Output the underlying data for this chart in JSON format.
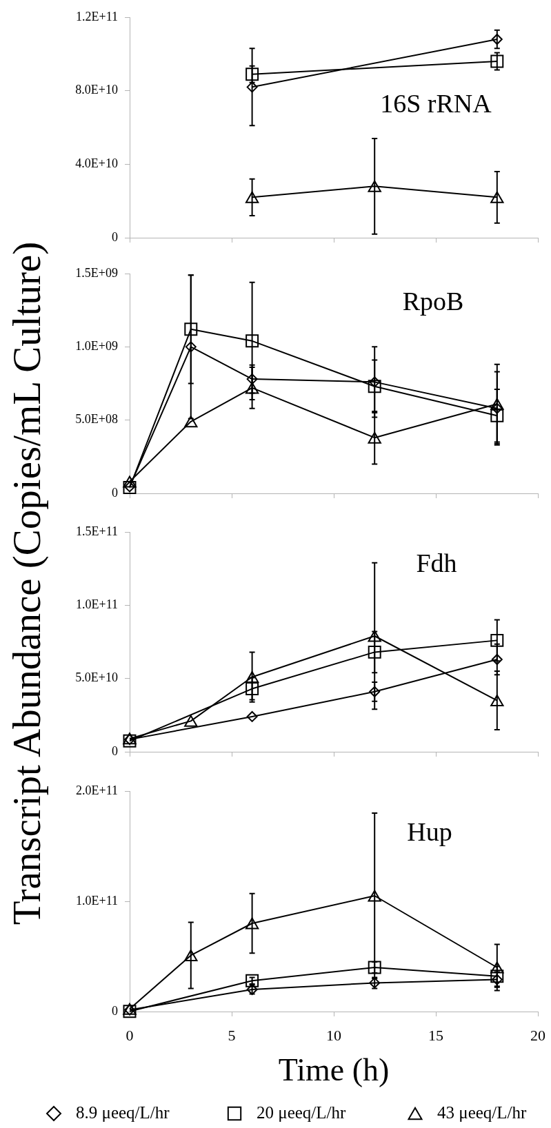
{
  "chart_data": [
    {
      "type": "line",
      "title": "16S rRNA",
      "ylabel": "Transcript Abundance (Copies/mL Culture)",
      "xlim": [
        0,
        20
      ],
      "xticks": [
        0,
        5,
        10,
        15,
        20
      ],
      "ylim": [
        0,
        120000000000.0
      ],
      "yticks": [
        {
          "value": 0,
          "label": "0"
        },
        {
          "value": 40000000000.0,
          "label": "4.0E+10"
        },
        {
          "value": 80000000000.0,
          "label": "8.0E+10"
        },
        {
          "value": 120000000000.0,
          "label": "1.2E+11"
        }
      ],
      "tick_labels": "y",
      "series": [
        {
          "color": "#000000",
          "marker": "diamond",
          "x": [
            6,
            18
          ],
          "values": [
            82000000000.0,
            108000000000.0
          ],
          "errors": [
            21000000000.0,
            5000000000.0
          ]
        },
        {
          "color": "#000000",
          "marker": "square",
          "x": [
            6,
            18
          ],
          "values": [
            89000000000.0,
            96000000000.0
          ],
          "errors": [
            4500000000.0,
            4700000000.0
          ]
        },
        {
          "color": "#000000",
          "marker": "triangle",
          "x": [
            6,
            12,
            18
          ],
          "values": [
            22000000000.0,
            28000000000.0,
            22000000000.0
          ],
          "errors": [
            10000000000.0,
            26000000000.0,
            14000000000.0
          ]
        }
      ]
    },
    {
      "type": "line",
      "title": "RpoB",
      "xlim": [
        0,
        20
      ],
      "xticks": [
        0,
        5,
        10,
        15,
        20
      ],
      "ylim": [
        0,
        1500000000.0
      ],
      "yticks": [
        {
          "value": 0,
          "label": "0"
        },
        {
          "value": 500000000.0,
          "label": "5.0E+08"
        },
        {
          "value": 1000000000.0,
          "label": "1.0E+09"
        },
        {
          "value": 1500000000.0,
          "label": "1.5E+09"
        }
      ],
      "tick_labels": "y",
      "series": [
        {
          "color": "#000000",
          "marker": "diamond",
          "x": [
            0,
            3,
            6,
            12,
            18
          ],
          "values": [
            45000000.0,
            1000000000.0,
            780000000.0,
            760000000.0,
            580000000.0
          ],
          "errors": [
            null,
            490000000.0,
            96000000.0,
            240000000.0,
            250000000.0
          ]
        },
        {
          "color": "#000000",
          "marker": "square",
          "x": [
            0,
            3,
            6,
            12,
            18
          ],
          "values": [
            40000000.0,
            1120000000.0,
            1040000000.0,
            730000000.0,
            530000000.0
          ],
          "errors": [
            null,
            370000000.0,
            400000000.0,
            180000000.0,
            180000000.0
          ]
        },
        {
          "color": "#000000",
          "marker": "triangle",
          "x": [
            0,
            3,
            6,
            12,
            18
          ],
          "values": [
            80000000.0,
            490000000.0,
            720000000.0,
            380000000.0,
            610000000.0
          ],
          "errors": [
            null,
            null,
            140000000.0,
            180000000.0,
            270000000.0
          ]
        }
      ]
    },
    {
      "type": "line",
      "title": "Fdh",
      "xlim": [
        0,
        20
      ],
      "xticks": [
        0,
        5,
        10,
        15,
        20
      ],
      "ylim": [
        0,
        150000000000.0
      ],
      "yticks": [
        {
          "value": 0,
          "label": "0"
        },
        {
          "value": 50000000000.0,
          "label": "5.0E+10"
        },
        {
          "value": 100000000000.0,
          "label": "1.0E+11"
        },
        {
          "value": 150000000000.0,
          "label": "1.5E+11"
        }
      ],
      "tick_labels": "y",
      "series": [
        {
          "color": "#000000",
          "marker": "diamond",
          "x": [
            0,
            6,
            12,
            18
          ],
          "values": [
            8400000000.0,
            24000000000.0,
            41000000000.0,
            63000000000.0
          ],
          "errors": [
            null,
            null,
            6500000000.0,
            10500000000.0
          ]
        },
        {
          "color": "#000000",
          "marker": "square",
          "x": [
            0,
            6,
            12,
            18
          ],
          "values": [
            7400000000.0,
            43000000000.0,
            68000000000.0,
            76000000000.0
          ],
          "errors": [
            null,
            7500000000.0,
            14000000000.0,
            14000000000.0
          ]
        },
        {
          "color": "#000000",
          "marker": "triangle",
          "x": [
            0,
            3,
            6,
            12,
            18
          ],
          "values": [
            9000000000.0,
            21000000000.0,
            51000000000.0,
            79000000000.0,
            35000000000.0
          ],
          "errors": [
            null,
            null,
            17000000000.0,
            50000000000.0,
            20000000000.0
          ]
        }
      ]
    },
    {
      "type": "line",
      "title": "Hup",
      "xlabel": "Time (h)",
      "xlim": [
        0,
        20
      ],
      "xticks": [
        0,
        5,
        10,
        15,
        20
      ],
      "ylim": [
        0,
        200000000000.0
      ],
      "yticks": [
        {
          "value": 0,
          "label": "0"
        },
        {
          "value": 100000000000.0,
          "label": "1.0E+11"
        },
        {
          "value": 200000000000.0,
          "label": "2.0E+11"
        }
      ],
      "legend": "bottom",
      "series": [
        {
          "name": "8.9 μeeq/L/hr",
          "color": "#000000",
          "marker": "diamond",
          "x": [
            0,
            6,
            12,
            18
          ],
          "values": [
            1500000000.0,
            20000000000.0,
            26000000000.0,
            29000000000.0
          ],
          "errors": [
            null,
            4000000000.0,
            5000000000.0,
            7000000000.0
          ]
        },
        {
          "name": "20 μeeq/L/hr",
          "color": "#000000",
          "marker": "square",
          "x": [
            0,
            6,
            12,
            18
          ],
          "values": [
            200000000.0,
            28000000000.0,
            40000000000.0,
            32000000000.0
          ],
          "errors": [
            null,
            3000000000.0,
            5000000000.0,
            9000000000.0
          ]
        },
        {
          "name": "43 μeeq/L/hr",
          "color": "#000000",
          "marker": "triangle",
          "x": [
            0,
            3,
            6,
            12,
            18
          ],
          "values": [
            2400000000.0,
            51000000000.0,
            80000000000.0,
            105000000000.0,
            40000000000.0
          ],
          "errors": [
            null,
            30000000000.0,
            27000000000.0,
            75000000000.0,
            21000000000.0
          ]
        }
      ]
    }
  ]
}
